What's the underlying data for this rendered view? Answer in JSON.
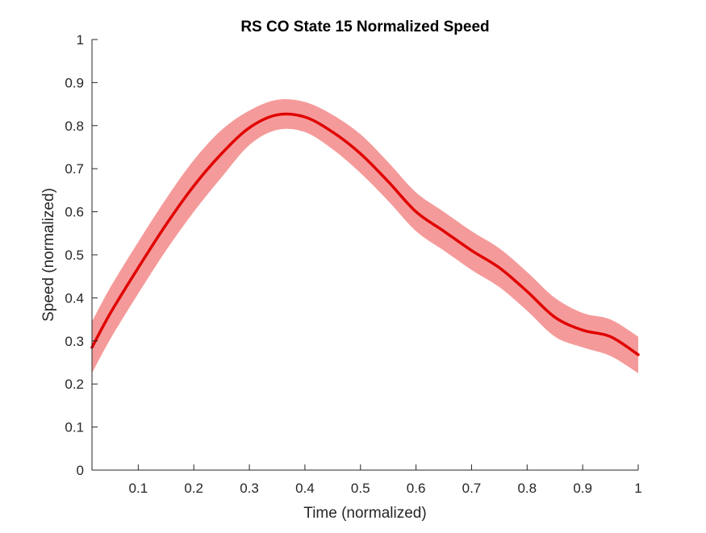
{
  "chart_data": {
    "type": "line",
    "title": "RS  CO State 15 Normalized Speed",
    "xlabel": "Time (normalized)",
    "ylabel": "Speed (normalized)",
    "xlim": [
      0.0167,
      1.0
    ],
    "ylim": [
      0,
      1
    ],
    "xticks": [
      "0.1",
      "0.2",
      "0.3",
      "0.4",
      "0.5",
      "0.6",
      "0.7",
      "0.8",
      "0.9",
      "1"
    ],
    "yticks": [
      "0",
      "0.1",
      "0.2",
      "0.3",
      "0.4",
      "0.5",
      "0.6",
      "0.7",
      "0.8",
      "0.9",
      "1"
    ],
    "grid": false,
    "colors": {
      "line": "#e00000",
      "band": "#f59a9a",
      "axis": "#262626"
    },
    "series": [
      {
        "x": [
          0.0167,
          0.05,
          0.1,
          0.15,
          0.2,
          0.25,
          0.3,
          0.35,
          0.4,
          0.45,
          0.5,
          0.55,
          0.6,
          0.65,
          0.7,
          0.75,
          0.8,
          0.85,
          0.9,
          0.95,
          1.0
        ],
        "y": [
          0.285,
          0.365,
          0.47,
          0.57,
          0.66,
          0.735,
          0.795,
          0.825,
          0.82,
          0.785,
          0.735,
          0.67,
          0.6,
          0.555,
          0.51,
          0.47,
          0.415,
          0.355,
          0.325,
          0.31,
          0.268
        ],
        "lower": [
          0.225,
          0.305,
          0.41,
          0.51,
          0.6,
          0.68,
          0.755,
          0.79,
          0.785,
          0.745,
          0.69,
          0.625,
          0.555,
          0.51,
          0.465,
          0.425,
          0.37,
          0.31,
          0.285,
          0.265,
          0.225
        ],
        "upper": [
          0.345,
          0.425,
          0.53,
          0.63,
          0.72,
          0.79,
          0.835,
          0.86,
          0.855,
          0.825,
          0.78,
          0.715,
          0.645,
          0.6,
          0.555,
          0.515,
          0.46,
          0.4,
          0.365,
          0.35,
          0.31
        ]
      }
    ]
  }
}
